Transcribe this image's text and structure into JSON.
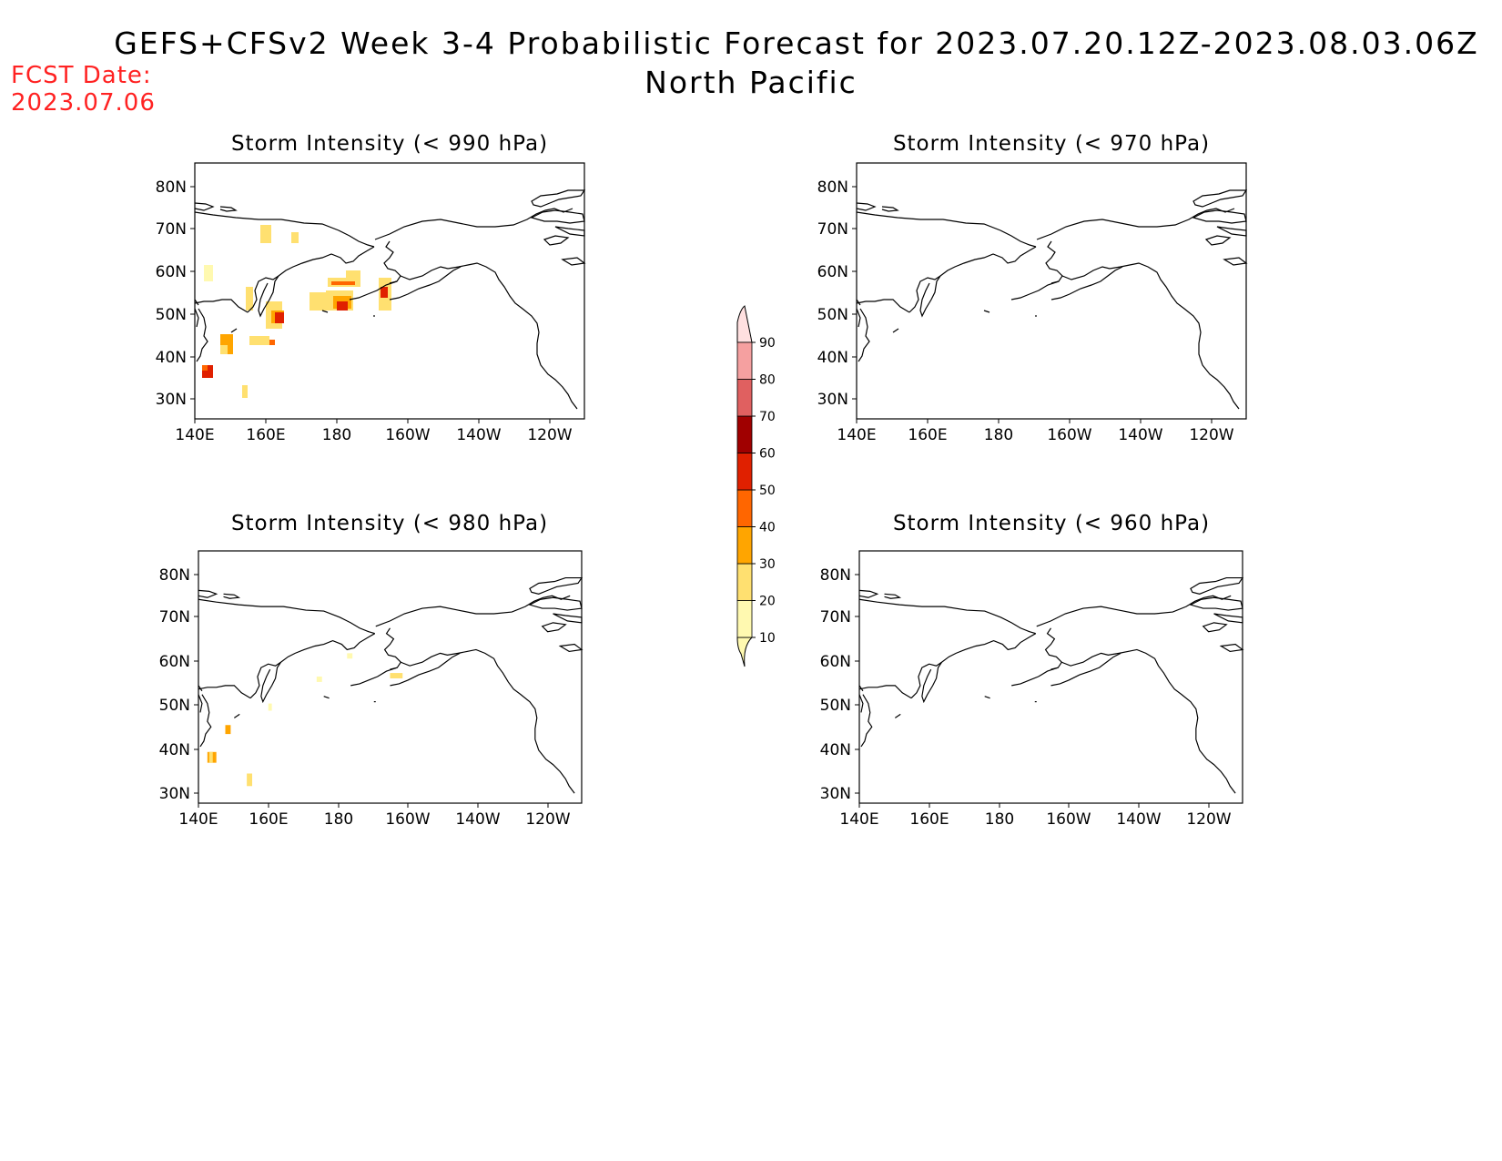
{
  "title": {
    "line1": "GEFS+CFSv2 Week 3-4 Probabilistic Forecast for 2023.07.20.12Z-2023.08.03.06Z",
    "line2": "North Pacific"
  },
  "forecast_date": {
    "label": "FCST Date:",
    "value": "2023.07.06"
  },
  "axes": {
    "x_ticks": [
      "140E",
      "160E",
      "180",
      "160W",
      "140W",
      "120W"
    ],
    "y_ticks": [
      "80N",
      "70N",
      "60N",
      "50N",
      "40N",
      "30N"
    ]
  },
  "colorbar": {
    "levels": [
      "10",
      "20",
      "30",
      "40",
      "50",
      "60",
      "70",
      "80",
      "90"
    ],
    "colors": [
      "#fff9b0",
      "#ffe070",
      "#ffa500",
      "#ff6600",
      "#e02000",
      "#a00000",
      "#e06060",
      "#f5a0a0",
      "#ffe0e0"
    ]
  },
  "panels": [
    {
      "id": "p990",
      "title": "Storm Intensity (< 990 hPa)"
    },
    {
      "id": "p970",
      "title": "Storm Intensity (< 970 hPa)"
    },
    {
      "id": "p980",
      "title": "Storm Intensity (< 980 hPa)"
    },
    {
      "id": "p960",
      "title": "Storm Intensity (< 960 hPa)"
    }
  ]
}
